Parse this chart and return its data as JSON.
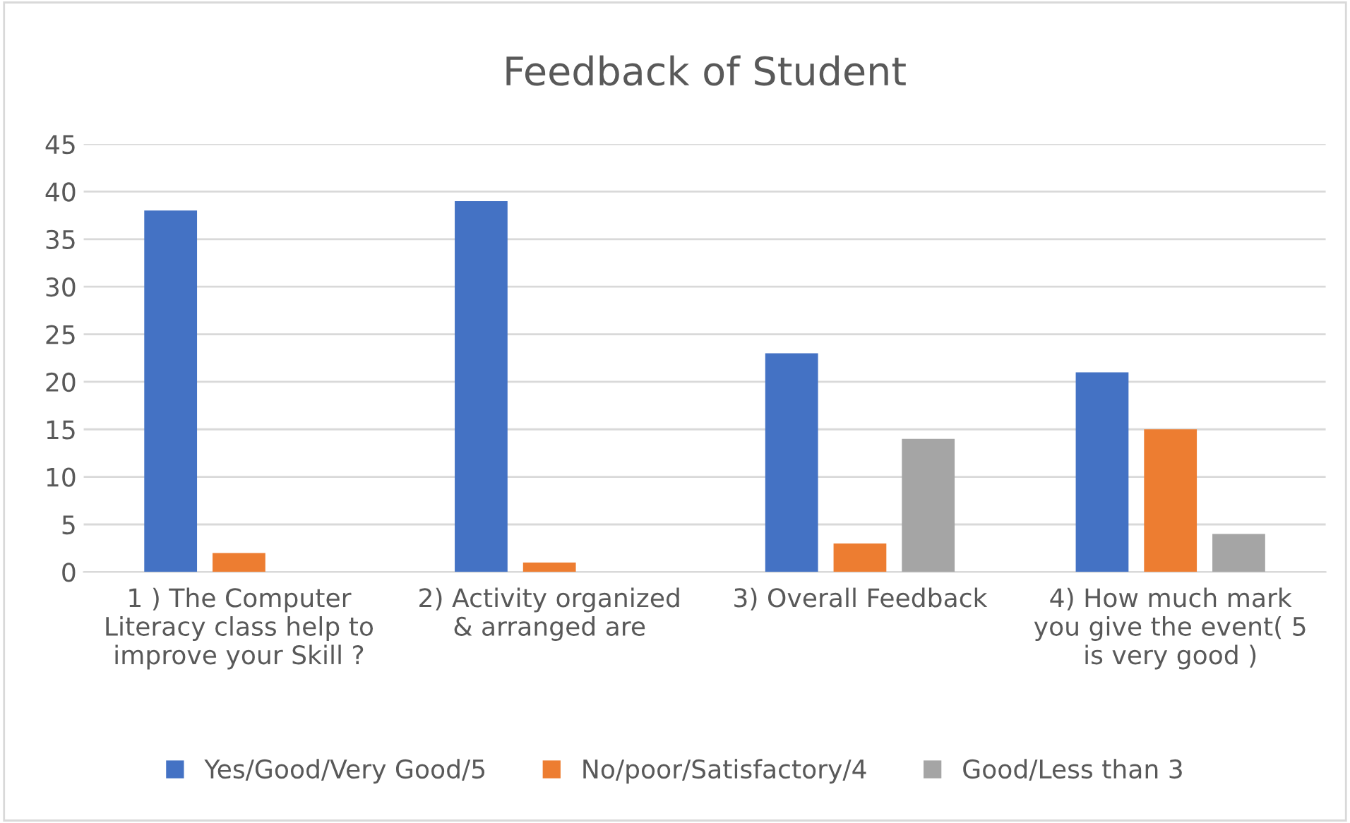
{
  "chart_data": {
    "type": "bar",
    "title": "Feedback of Student",
    "categories": [
      "1 ) The Computer\nLiteracy class help to\nimprove your Skill ?",
      "2) Activity organized\n& arranged are",
      "3) Overall Feedback",
      "4) How much mark\nyou give the event( 5\nis very good )"
    ],
    "series": [
      {
        "name": "Yes/Good/Very Good/5",
        "color": "#4472c4",
        "values": [
          38,
          39,
          23,
          21
        ]
      },
      {
        "name": "No/poor/Satisfactory/4",
        "color": "#ed7d31",
        "values": [
          2,
          1,
          3,
          15
        ]
      },
      {
        "name": "Good/Less than 3",
        "color": "#a5a5a5",
        "values": [
          null,
          null,
          14,
          4
        ]
      }
    ],
    "ylim": [
      0,
      45
    ],
    "yticks": [
      0,
      5,
      10,
      15,
      20,
      25,
      30,
      35,
      40,
      45
    ],
    "grid": "y",
    "legend": "bottom"
  }
}
